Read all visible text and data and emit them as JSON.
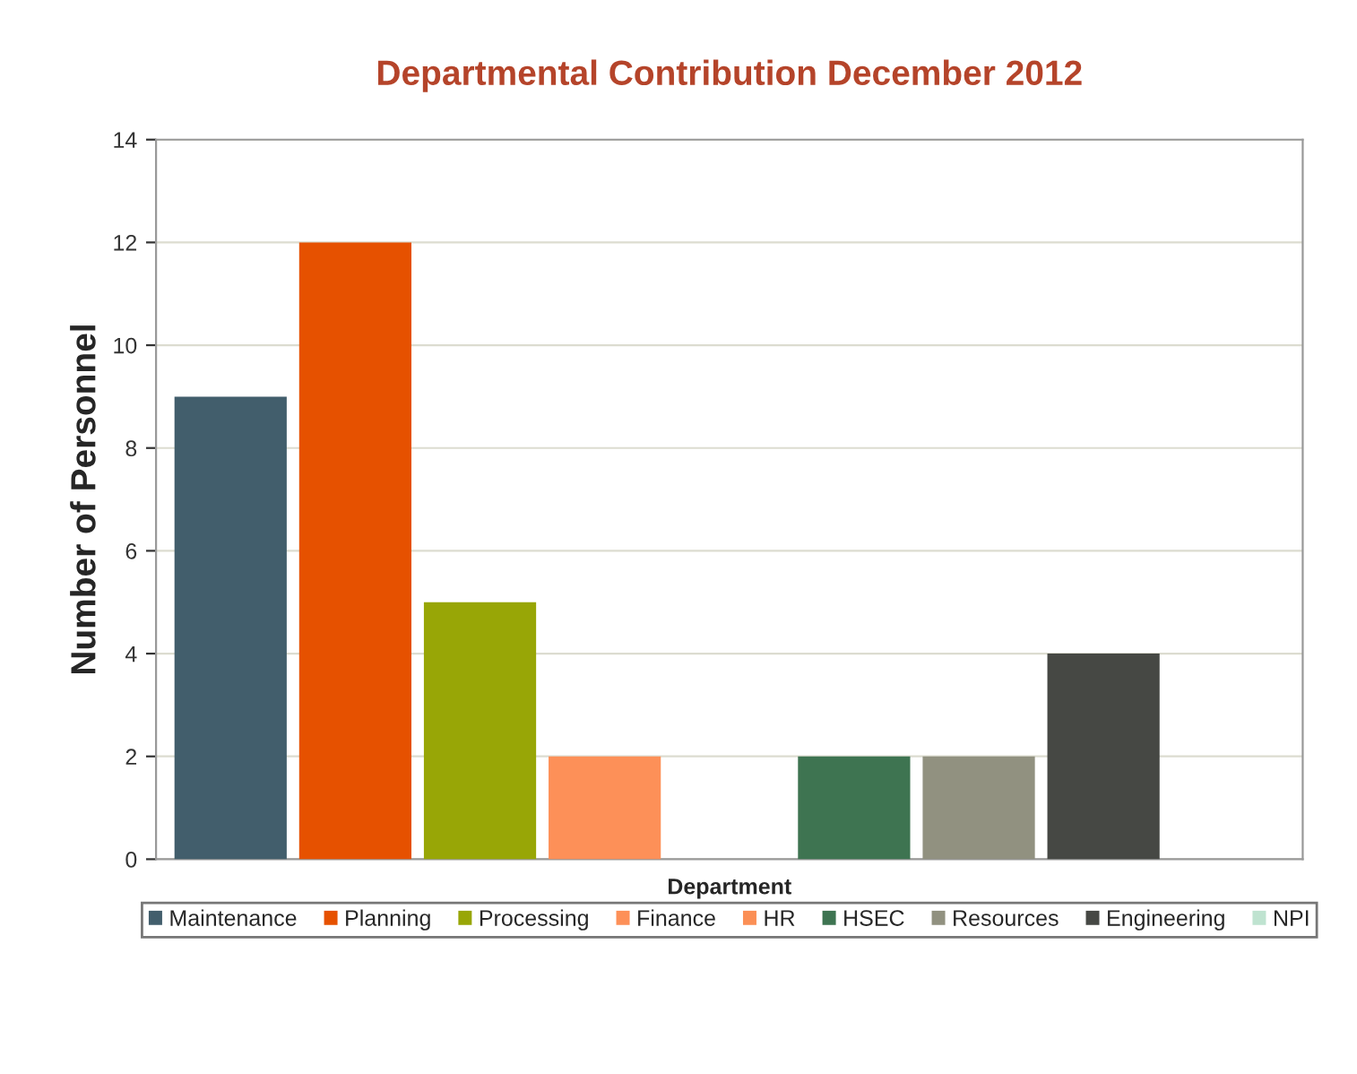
{
  "chart_data": {
    "type": "bar",
    "title": "Departmental Contribution December 2012",
    "xlabel": "Department",
    "ylabel": "Number of Personnel",
    "categories": [
      null
    ],
    "series": [
      {
        "name": "Maintenance",
        "color": "#425e6c",
        "values": [
          9
        ]
      },
      {
        "name": "Planning",
        "color": "#e65100",
        "values": [
          12
        ]
      },
      {
        "name": "Processing",
        "color": "#98a606",
        "values": [
          5
        ]
      },
      {
        "name": "Finance",
        "color": "#fd9058",
        "values": [
          2
        ]
      },
      {
        "name": "HR",
        "color": "#fb8f55",
        "values": [
          0
        ]
      },
      {
        "name": "HSEC",
        "color": "#3e7451",
        "values": [
          2
        ]
      },
      {
        "name": "Resources",
        "color": "#919180",
        "values": [
          2
        ]
      },
      {
        "name": "Engineering",
        "color": "#464844",
        "values": [
          4
        ]
      },
      {
        "name": "NPI",
        "color": "#bfe3d0",
        "values": [
          0
        ]
      }
    ],
    "ylim": [
      0,
      14
    ],
    "yticks": [
      0,
      2,
      4,
      6,
      8,
      10,
      12,
      14
    ],
    "grid": "y",
    "legend": "bottom"
  }
}
